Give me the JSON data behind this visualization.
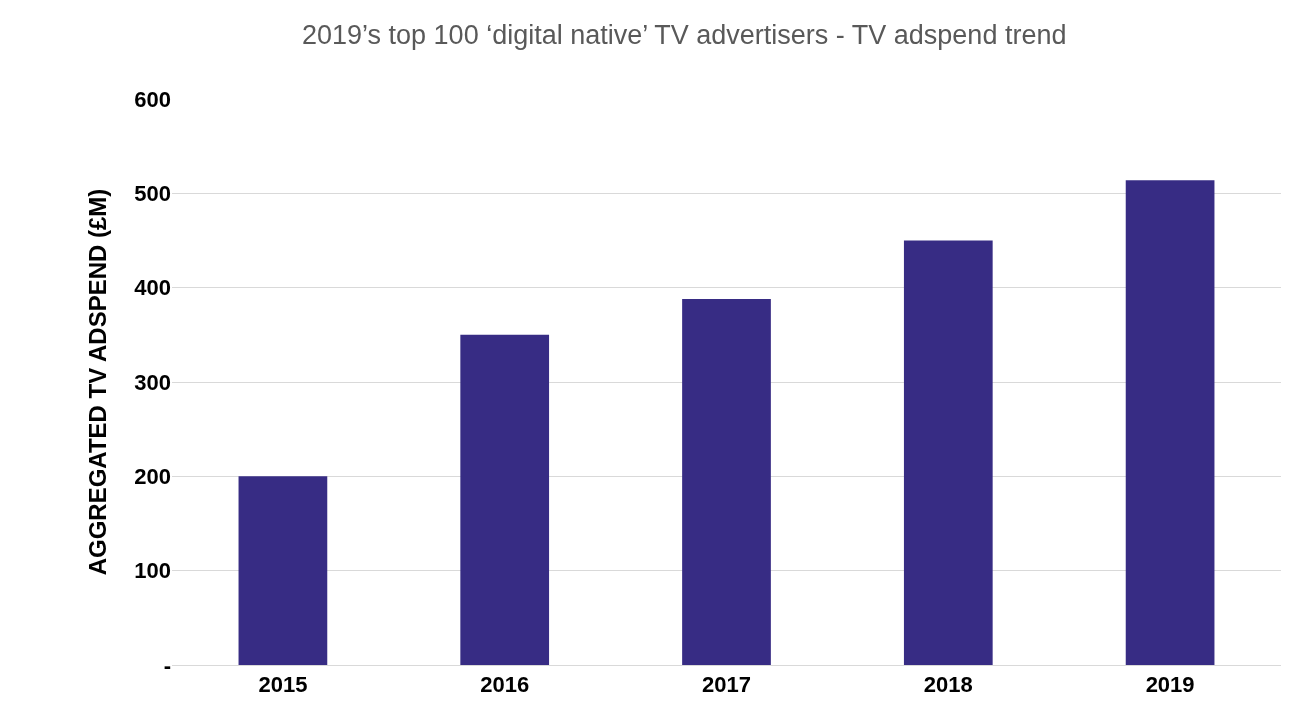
{
  "chart_data": {
    "type": "bar",
    "title": "2019’s top 100 ‘digital native’ TV advertisers - TV adspend trend",
    "ylabel": "AGGREGATED TV ADSPEND (£M)",
    "categories": [
      "2015",
      "2016",
      "2017",
      "2018",
      "2019"
    ],
    "values": [
      200,
      350,
      388,
      450,
      514
    ],
    "color": "#372c84",
    "ylim": [
      0,
      600
    ],
    "yticks": [
      {
        "value": 0,
        "label": "-"
      },
      100,
      200,
      300,
      400,
      500,
      600
    ],
    "grid": "y",
    "legend": false
  }
}
